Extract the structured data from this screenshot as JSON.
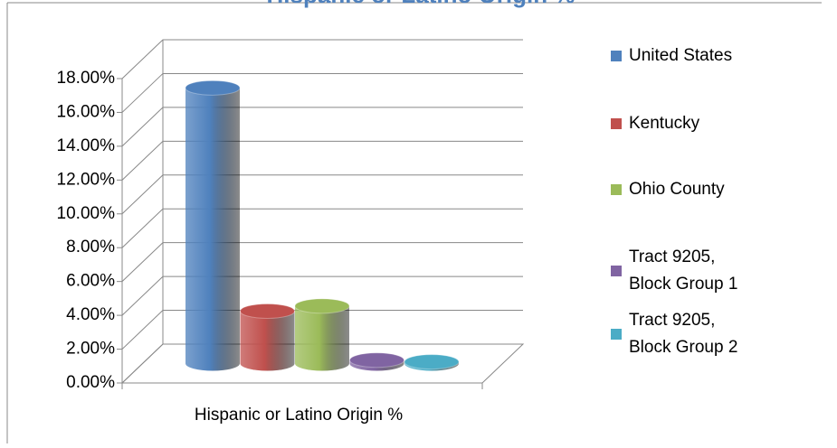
{
  "chart_data": {
    "type": "bar3d",
    "title": "Hispanic or Latino Origin %",
    "categories": [
      "Hispanic or Latino Origin %"
    ],
    "series": [
      {
        "name": "United States",
        "color": "#4f81bd",
        "values": [
          16.3
        ]
      },
      {
        "name": "Kentucky",
        "color": "#c0504d",
        "values": [
          3.1
        ]
      },
      {
        "name": "Ohio County",
        "color": "#9bbb59",
        "values": [
          3.4
        ]
      },
      {
        "name": "Tract 9205, Block Group 1",
        "color": "#8064a2",
        "values": [
          0.2
        ]
      },
      {
        "name": "Tract 9205, Block Group 2",
        "color": "#4bacc6",
        "values": [
          0.1
        ]
      }
    ],
    "ylim": [
      0,
      18
    ],
    "yticks": [
      {
        "value": 0,
        "label": "0.00%"
      },
      {
        "value": 2,
        "label": "2.00%"
      },
      {
        "value": 4,
        "label": "4.00%"
      },
      {
        "value": 6,
        "label": "6.00%"
      },
      {
        "value": 8,
        "label": "8.00%"
      },
      {
        "value": 10,
        "label": "10.00%"
      },
      {
        "value": 12,
        "label": "12.00%"
      },
      {
        "value": 14,
        "label": "14.00%"
      },
      {
        "value": 16,
        "label": "16.00%"
      },
      {
        "value": 18,
        "label": "18.00%"
      }
    ],
    "grid": true,
    "legend": "right"
  }
}
